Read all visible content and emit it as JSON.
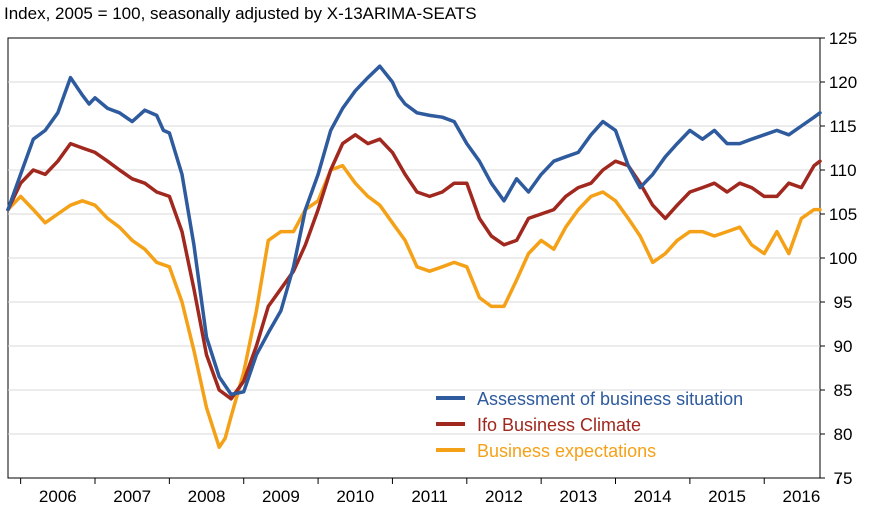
{
  "chart_data": {
    "type": "line",
    "title": "Index, 2005 = 100, seasonally adjusted by X-13ARIMA-SEATS",
    "xlabel": "",
    "ylabel": "",
    "ylim": [
      75,
      125
    ],
    "yticks": [
      75,
      80,
      85,
      90,
      95,
      100,
      105,
      110,
      115,
      120,
      125
    ],
    "x_labels": [
      "2006",
      "2007",
      "2008",
      "2009",
      "2010",
      "2011",
      "2012",
      "2013",
      "2014",
      "2015",
      "2016"
    ],
    "x_range": [
      2005.83,
      2016.75
    ],
    "grid": true,
    "legend_position": "bottom-center",
    "series": [
      {
        "name": "Assessment of business situation",
        "color": "#2E5A9E",
        "x": [
          2005.83,
          2006.0,
          2006.17,
          2006.33,
          2006.5,
          2006.67,
          2006.83,
          2006.92,
          2007.0,
          2007.17,
          2007.33,
          2007.5,
          2007.67,
          2007.83,
          2007.92,
          2008.0,
          2008.17,
          2008.33,
          2008.5,
          2008.67,
          2008.83,
          2009.0,
          2009.17,
          2009.33,
          2009.5,
          2009.67,
          2009.83,
          2010.0,
          2010.17,
          2010.33,
          2010.5,
          2010.67,
          2010.83,
          2011.0,
          2011.08,
          2011.17,
          2011.33,
          2011.5,
          2011.67,
          2011.83,
          2012.0,
          2012.17,
          2012.33,
          2012.5,
          2012.67,
          2012.83,
          2013.0,
          2013.17,
          2013.33,
          2013.5,
          2013.67,
          2013.83,
          2014.0,
          2014.17,
          2014.33,
          2014.5,
          2014.67,
          2014.83,
          2015.0,
          2015.17,
          2015.33,
          2015.5,
          2015.67,
          2015.83,
          2016.0,
          2016.17,
          2016.33,
          2016.5,
          2016.67,
          2016.75
        ],
        "values": [
          105.5,
          109.5,
          113.5,
          114.5,
          116.5,
          120.5,
          118.5,
          117.5,
          118.2,
          117.0,
          116.5,
          115.5,
          116.8,
          116.2,
          114.5,
          114.2,
          109.5,
          101.5,
          91.0,
          86.5,
          84.5,
          84.8,
          89.0,
          91.5,
          94.0,
          99.0,
          105.5,
          109.5,
          114.5,
          117.0,
          119.0,
          120.5,
          121.8,
          120.0,
          118.5,
          117.5,
          116.5,
          116.2,
          116.0,
          115.5,
          113.0,
          111.0,
          108.5,
          106.5,
          109.0,
          107.5,
          109.5,
          111.0,
          111.5,
          112.0,
          114.0,
          115.5,
          114.5,
          110.5,
          108.0,
          109.5,
          111.5,
          113.0,
          114.5,
          113.5,
          114.5,
          113.0,
          113.0,
          113.5,
          114.0,
          114.5,
          114.0,
          115.0,
          116.0,
          116.5
        ]
      },
      {
        "name": "Ifo Business Climate",
        "color": "#A0281E",
        "x": [
          2005.83,
          2006.0,
          2006.17,
          2006.33,
          2006.5,
          2006.67,
          2006.83,
          2007.0,
          2007.17,
          2007.33,
          2007.5,
          2007.67,
          2007.83,
          2008.0,
          2008.17,
          2008.33,
          2008.5,
          2008.67,
          2008.83,
          2009.0,
          2009.17,
          2009.33,
          2009.5,
          2009.67,
          2009.83,
          2010.0,
          2010.17,
          2010.33,
          2010.5,
          2010.67,
          2010.83,
          2011.0,
          2011.17,
          2011.33,
          2011.5,
          2011.67,
          2011.83,
          2012.0,
          2012.17,
          2012.33,
          2012.5,
          2012.67,
          2012.83,
          2013.0,
          2013.17,
          2013.33,
          2013.5,
          2013.67,
          2013.83,
          2014.0,
          2014.17,
          2014.33,
          2014.5,
          2014.67,
          2014.83,
          2015.0,
          2015.17,
          2015.33,
          2015.5,
          2015.67,
          2015.83,
          2016.0,
          2016.17,
          2016.33,
          2016.5,
          2016.67,
          2016.75
        ],
        "values": [
          105.5,
          108.5,
          110.0,
          109.5,
          111.0,
          113.0,
          112.5,
          112.0,
          111.0,
          110.0,
          109.0,
          108.5,
          107.5,
          107.0,
          103.0,
          96.5,
          89.0,
          85.0,
          84.0,
          86.0,
          90.0,
          94.5,
          96.5,
          98.5,
          101.5,
          105.5,
          110.0,
          113.0,
          114.0,
          113.0,
          113.5,
          112.0,
          109.5,
          107.5,
          107.0,
          107.5,
          108.5,
          108.5,
          104.5,
          102.5,
          101.5,
          102.0,
          104.5,
          105.0,
          105.5,
          107.0,
          108.0,
          108.5,
          110.0,
          111.0,
          110.5,
          108.5,
          106.0,
          104.5,
          106.0,
          107.5,
          108.0,
          108.5,
          107.5,
          108.5,
          108.0,
          107.0,
          107.0,
          108.5,
          108.0,
          110.5,
          111.0
        ]
      },
      {
        "name": "Business expectations",
        "color": "#F5A118",
        "x": [
          2005.83,
          2006.0,
          2006.17,
          2006.33,
          2006.5,
          2006.67,
          2006.83,
          2007.0,
          2007.17,
          2007.33,
          2007.5,
          2007.67,
          2007.83,
          2008.0,
          2008.17,
          2008.33,
          2008.5,
          2008.67,
          2008.75,
          2008.83,
          2009.0,
          2009.17,
          2009.33,
          2009.5,
          2009.67,
          2009.83,
          2010.0,
          2010.17,
          2010.33,
          2010.5,
          2010.67,
          2010.83,
          2011.0,
          2011.17,
          2011.33,
          2011.5,
          2011.67,
          2011.83,
          2012.0,
          2012.17,
          2012.33,
          2012.5,
          2012.67,
          2012.83,
          2013.0,
          2013.17,
          2013.33,
          2013.5,
          2013.67,
          2013.83,
          2014.0,
          2014.17,
          2014.33,
          2014.5,
          2014.67,
          2014.83,
          2015.0,
          2015.17,
          2015.33,
          2015.5,
          2015.67,
          2015.83,
          2016.0,
          2016.17,
          2016.33,
          2016.5,
          2016.67,
          2016.75
        ],
        "values": [
          105.5,
          107.0,
          105.5,
          104.0,
          105.0,
          106.0,
          106.5,
          106.0,
          104.5,
          103.5,
          102.0,
          101.0,
          99.5,
          99.0,
          95.0,
          89.5,
          83.0,
          78.5,
          79.5,
          82.0,
          87.0,
          94.0,
          102.0,
          103.0,
          103.0,
          105.5,
          106.5,
          110.0,
          110.5,
          108.5,
          107.0,
          106.0,
          104.0,
          102.0,
          99.0,
          98.5,
          99.0,
          99.5,
          99.0,
          95.5,
          94.5,
          94.5,
          97.5,
          100.5,
          102.0,
          101.0,
          103.5,
          105.5,
          107.0,
          107.5,
          106.5,
          104.5,
          102.5,
          99.5,
          100.5,
          102.0,
          103.0,
          103.0,
          102.5,
          103.0,
          103.5,
          101.5,
          100.5,
          103.0,
          100.5,
          104.5,
          105.5,
          105.5
        ]
      }
    ]
  },
  "colors": {
    "grid": "#D9D9D9",
    "axis": "#000000",
    "text": "#000000"
  }
}
